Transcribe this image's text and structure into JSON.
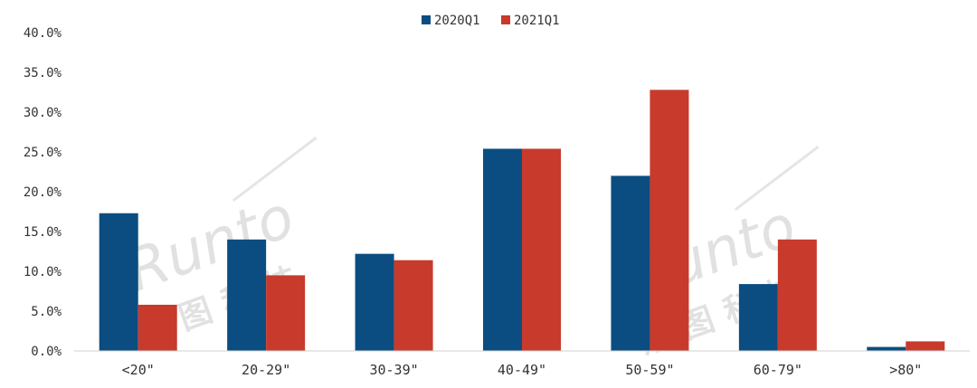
{
  "chart_data": {
    "type": "bar",
    "categories": [
      "<20\"",
      "20-29\"",
      "30-39\"",
      "40-49\"",
      "50-59\"",
      "60-79\"",
      ">80\""
    ],
    "series": [
      {
        "name": "2020Q1",
        "color": "#0b4d80",
        "values": [
          17.3,
          14.0,
          12.2,
          25.4,
          22.0,
          8.4,
          0.5
        ]
      },
      {
        "name": "2021Q1",
        "color": "#c83a2b",
        "values": [
          5.8,
          9.5,
          11.4,
          25.4,
          32.8,
          14.0,
          1.2
        ]
      }
    ],
    "yticks": [
      "0.0%",
      "5.0%",
      "10.0%",
      "15.0%",
      "20.0%",
      "25.0%",
      "30.0%",
      "35.0%",
      "40.0%"
    ],
    "ylim": [
      0,
      40
    ],
    "legend_position": "top-center",
    "grid": false
  },
  "watermark": {
    "latin": "Runto",
    "cjk": "洛图科技",
    "icon": "runto-logo-icon"
  }
}
